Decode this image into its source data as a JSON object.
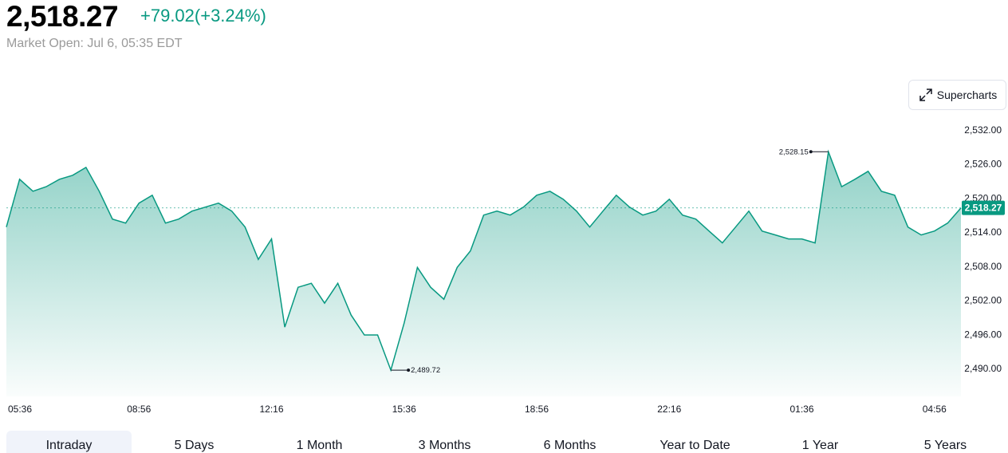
{
  "header": {
    "price": "2,518.27",
    "change": "+79.02(+3.24%)",
    "status": "Market Open: Jul 6, 05:35 EDT",
    "button": "Supercharts"
  },
  "tabs": [
    "Intraday",
    "5 Days",
    "1 Month",
    "3 Months",
    "6 Months",
    "Year to Date",
    "1 Year",
    "5 Years"
  ],
  "chart_data": {
    "type": "line",
    "categories": [
      "05:36",
      null,
      null,
      null,
      null,
      null,
      null,
      null,
      null,
      null,
      "08:56",
      null,
      null,
      null,
      null,
      null,
      null,
      null,
      null,
      null,
      "12:16",
      null,
      null,
      null,
      null,
      null,
      null,
      null,
      null,
      null,
      "15:36",
      null,
      null,
      null,
      null,
      null,
      null,
      null,
      null,
      null,
      "18:56",
      null,
      null,
      null,
      null,
      null,
      null,
      null,
      null,
      null,
      "22:16",
      null,
      null,
      null,
      null,
      null,
      null,
      null,
      null,
      null,
      "01:36",
      null,
      null,
      null,
      null,
      null,
      null,
      null,
      null,
      null,
      "04:56",
      null,
      null
    ],
    "series": [
      {
        "name": "Price",
        "color": "#089981",
        "values": [
          2514.9,
          2523.3,
          2521.2,
          2522,
          2523.3,
          2524,
          2525.4,
          2521.2,
          2516.3,
          2515.6,
          2519.1,
          2520.5,
          2515.6,
          2516.3,
          2517.7,
          2518.4,
          2519.1,
          2517.7,
          2514.9,
          2509.2,
          2512.8,
          2497.3,
          2504.3,
          2505,
          2501.5,
          2505,
          2499.4,
          2495.9,
          2495.9,
          2489.72,
          2498,
          2507.8,
          2504.3,
          2502.2,
          2507.8,
          2510.7,
          2517,
          2517.7,
          2517,
          2518.4,
          2520.5,
          2521.2,
          2519.8,
          2517.7,
          2514.9,
          2517.7,
          2520.5,
          2518.4,
          2517,
          2517.7,
          2519.8,
          2517,
          2516.3,
          2514.2,
          2512.1,
          2514.9,
          2517.7,
          2514.2,
          2513.5,
          2512.8,
          2512.8,
          2512.1,
          2528.15,
          2522,
          2523.3,
          2524.7,
          2521.2,
          2520.5,
          2514.9,
          2513.5,
          2514.2,
          2515.6,
          2518.27
        ],
        "value_labels": [
          null,
          null,
          null,
          null,
          null,
          null,
          null,
          null,
          null,
          null,
          null,
          null,
          null,
          null,
          null,
          null,
          null,
          null,
          null,
          null,
          null,
          null,
          null,
          null,
          null,
          null,
          null,
          null,
          null,
          "2,489.72",
          null,
          null,
          null,
          null,
          null,
          null,
          null,
          null,
          null,
          null,
          null,
          null,
          null,
          null,
          null,
          null,
          null,
          null,
          null,
          null,
          null,
          null,
          null,
          null,
          null,
          null,
          null,
          null,
          null,
          null,
          null,
          null,
          "2,528.15",
          null,
          null,
          null,
          null,
          null,
          null,
          null,
          null,
          null,
          null
        ]
      }
    ],
    "current": {
      "value": 2518.27,
      "label": "2,518.27"
    },
    "ylim": [
      2485.1,
      2533.8
    ],
    "yticks": [
      {
        "value": 2490,
        "label": "2,490.00"
      },
      {
        "value": 2496,
        "label": "2,496.00"
      },
      {
        "value": 2502,
        "label": "2,502.00"
      },
      {
        "value": 2508,
        "label": "2,508.00"
      },
      {
        "value": 2514,
        "label": "2,514.00"
      },
      {
        "value": 2520,
        "label": "2,520.00"
      },
      {
        "value": 2526,
        "label": "2,526.00"
      },
      {
        "value": 2532,
        "label": "2,532.00"
      }
    ]
  }
}
